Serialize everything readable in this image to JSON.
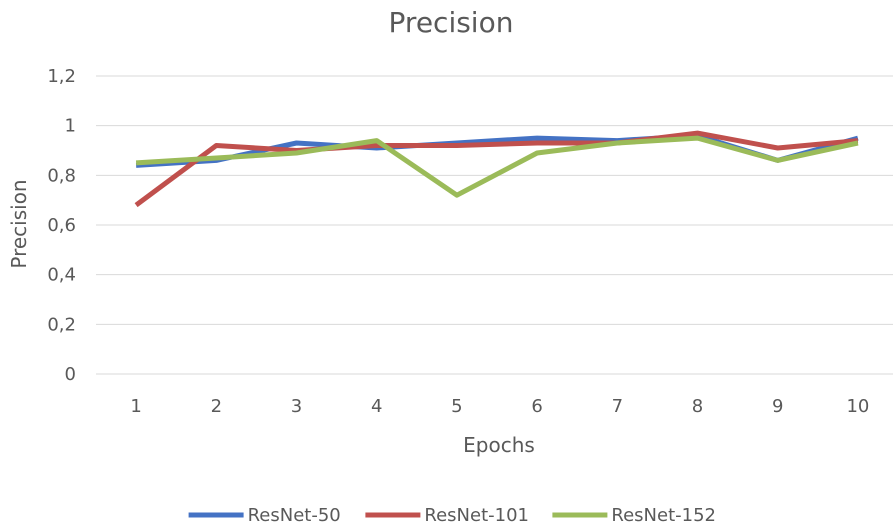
{
  "chart_data": {
    "type": "line",
    "title": "Precision",
    "xlabel": "Epochs",
    "ylabel": "Precision",
    "categories": [
      "1",
      "2",
      "3",
      "4",
      "5",
      "6",
      "7",
      "8",
      "9",
      "10"
    ],
    "y_ticks": [
      "0",
      "0,2",
      "0,4",
      "0,6",
      "0,8",
      "1",
      "1,2"
    ],
    "ylim": [
      0,
      1.2
    ],
    "grid": true,
    "legend_position": "bottom",
    "series": [
      {
        "name": "ResNet-50",
        "color": "#4472c4",
        "values": [
          0.84,
          0.86,
          0.93,
          0.91,
          0.93,
          0.95,
          0.94,
          0.96,
          0.86,
          0.95
        ]
      },
      {
        "name": "ResNet-101",
        "color": "#c0504d",
        "values": [
          0.68,
          0.92,
          0.9,
          0.92,
          0.92,
          0.93,
          0.93,
          0.97,
          0.91,
          0.94
        ]
      },
      {
        "name": "ResNet-152",
        "color": "#9bbb59",
        "values": [
          0.85,
          0.87,
          0.89,
          0.94,
          0.72,
          0.89,
          0.93,
          0.95,
          0.86,
          0.93
        ]
      }
    ]
  }
}
